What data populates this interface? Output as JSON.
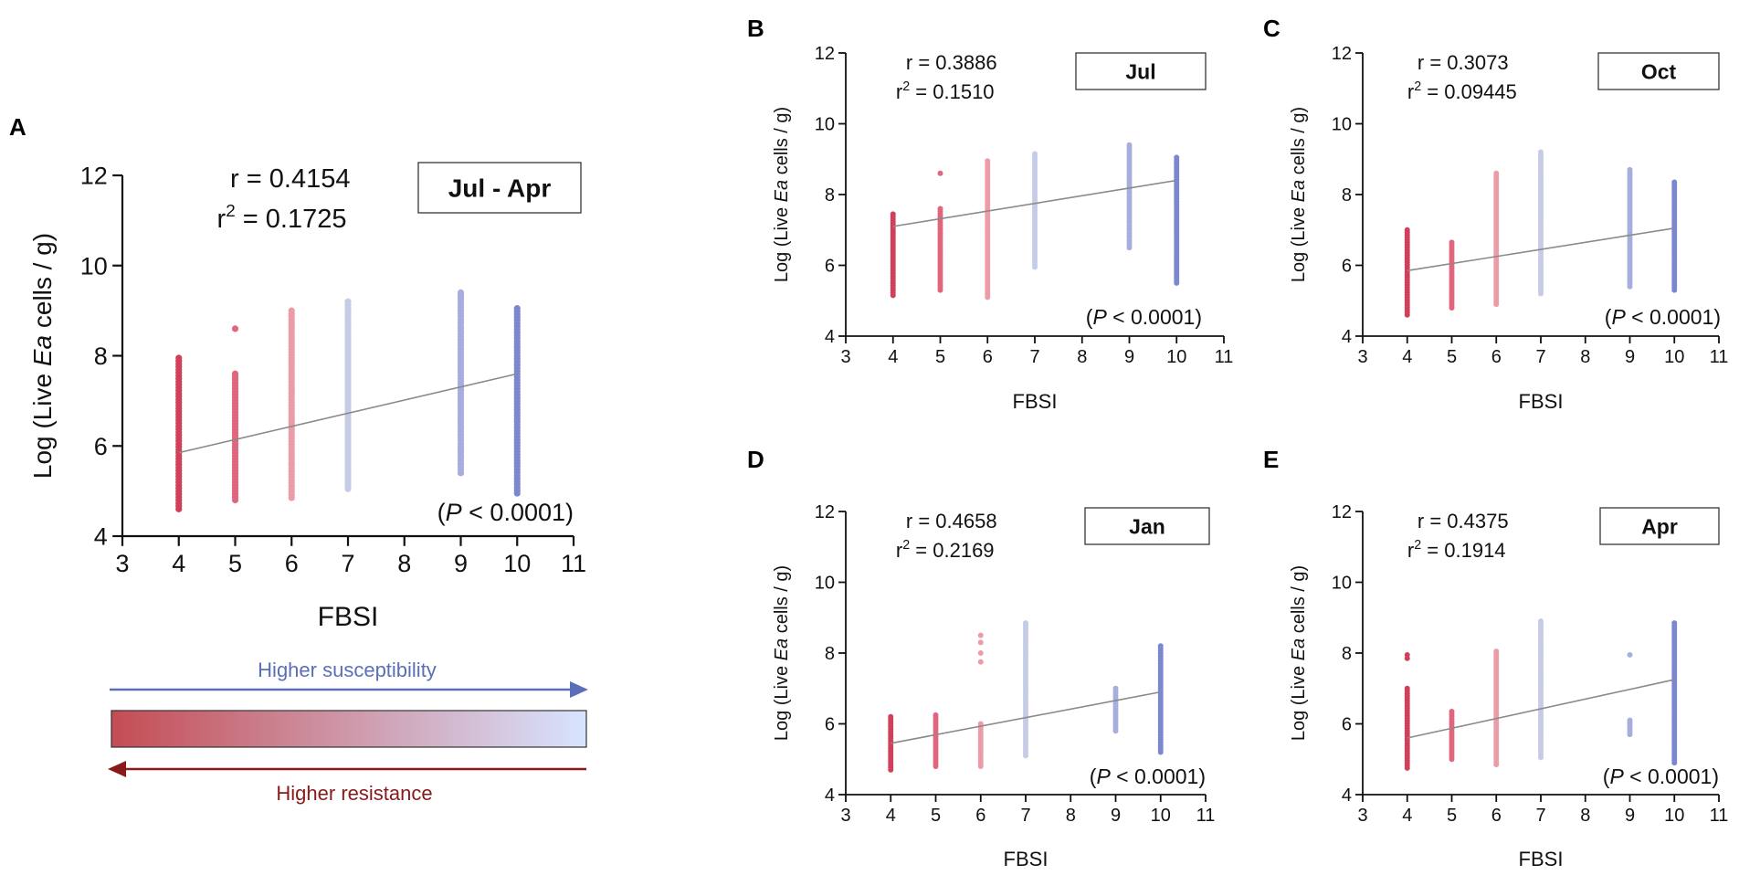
{
  "colors": {
    "fbsi_4": "#d1405a",
    "fbsi_5": "#e0667e",
    "fbsi_6": "#eb9ca7",
    "fbsi_7": "#c6cbe6",
    "fbsi_9": "#a7aede",
    "fbsi_10": "#7b88d0",
    "regression_line": "#8a8a8a",
    "axis": "#111111",
    "susceptibility_arrow": "#5b6fb8",
    "resistance_arrow": "#8a1a1a",
    "gradient_start": "#c44c54",
    "gradient_end": "#d8e4ff"
  },
  "legend_bar": {
    "susceptibility_label": "Higher susceptibility",
    "resistance_label": "Higher resistance"
  },
  "chart_data": [
    {
      "panel": "A",
      "type": "scatter",
      "title": "Jul - Apr",
      "xlabel": "FBSI",
      "ylabel_prefix": "Log (Live ",
      "ylabel_italic": "Ea",
      "ylabel_suffix": " cells / g)",
      "xlim": [
        3,
        11
      ],
      "ylim": [
        4,
        12
      ],
      "xticks": [
        "3",
        "4",
        "5",
        "6",
        "7",
        "8",
        "9",
        "10",
        "11"
      ],
      "yticks": [
        "4",
        "6",
        "8",
        "10",
        "12"
      ],
      "r_label": "r",
      "r_value": "0.4154",
      "r2_label": "r",
      "r2_sup": "2",
      "r2_value": "0.1725",
      "p_prefix": "(",
      "p_italic": "P",
      "p_suffix": " < 0.0001)",
      "regression": {
        "x": [
          4,
          10
        ],
        "y": [
          5.85,
          7.6
        ]
      },
      "groups": [
        {
          "x": 4,
          "ymin": 4.6,
          "ymax": 7.95,
          "outliers": []
        },
        {
          "x": 5,
          "ymin": 4.8,
          "ymax": 7.6,
          "outliers": [
            8.6
          ]
        },
        {
          "x": 6,
          "ymin": 4.85,
          "ymax": 9.0,
          "outliers": []
        },
        {
          "x": 7,
          "ymin": 5.05,
          "ymax": 9.2,
          "outliers": []
        },
        {
          "x": 9,
          "ymin": 5.4,
          "ymax": 9.4,
          "outliers": []
        },
        {
          "x": 10,
          "ymin": 4.95,
          "ymax": 9.05,
          "outliers": []
        }
      ]
    },
    {
      "panel": "B",
      "type": "scatter",
      "title": "Jul",
      "xlabel": "FBSI",
      "ylabel_prefix": "Log (Live ",
      "ylabel_italic": "Ea",
      "ylabel_suffix": " cells / g)",
      "xlim": [
        3,
        11
      ],
      "ylim": [
        4,
        12
      ],
      "xticks": [
        "3",
        "4",
        "5",
        "6",
        "7",
        "8",
        "9",
        "10",
        "11"
      ],
      "yticks": [
        "4",
        "6",
        "8",
        "10",
        "12"
      ],
      "r_label": "r",
      "r_value": "0.3886",
      "r2_label": "r",
      "r2_sup": "2",
      "r2_value": "0.1510",
      "p_prefix": "(",
      "p_italic": "P",
      "p_suffix": " < 0.0001)",
      "regression": {
        "x": [
          4,
          10
        ],
        "y": [
          7.1,
          8.4
        ]
      },
      "groups": [
        {
          "x": 4,
          "ymin": 5.15,
          "ymax": 7.45,
          "outliers": []
        },
        {
          "x": 5,
          "ymin": 5.3,
          "ymax": 7.6,
          "outliers": [
            8.6
          ]
        },
        {
          "x": 6,
          "ymin": 5.1,
          "ymax": 8.95,
          "outliers": []
        },
        {
          "x": 7,
          "ymin": 5.95,
          "ymax": 9.15,
          "outliers": []
        },
        {
          "x": 9,
          "ymin": 6.5,
          "ymax": 9.4,
          "outliers": []
        },
        {
          "x": 10,
          "ymin": 5.5,
          "ymax": 9.05,
          "outliers": []
        }
      ]
    },
    {
      "panel": "C",
      "type": "scatter",
      "title": "Oct",
      "xlabel": "FBSI",
      "ylabel_prefix": "Log (Live ",
      "ylabel_italic": "Ea",
      "ylabel_suffix": " cells / g)",
      "xlim": [
        3,
        11
      ],
      "ylim": [
        4,
        12
      ],
      "xticks": [
        "3",
        "4",
        "5",
        "6",
        "7",
        "8",
        "9",
        "10",
        "11"
      ],
      "yticks": [
        "4",
        "6",
        "8",
        "10",
        "12"
      ],
      "r_label": "r",
      "r_value": "0.3073",
      "r2_label": "r",
      "r2_sup": "2",
      "r2_value": "0.09445",
      "p_prefix": "(",
      "p_italic": "P",
      "p_suffix": " < 0.0001)",
      "regression": {
        "x": [
          4,
          10
        ],
        "y": [
          5.85,
          7.05
        ]
      },
      "groups": [
        {
          "x": 4,
          "ymin": 4.6,
          "ymax": 7.0,
          "outliers": []
        },
        {
          "x": 5,
          "ymin": 4.8,
          "ymax": 6.65,
          "outliers": []
        },
        {
          "x": 6,
          "ymin": 4.9,
          "ymax": 8.6,
          "outliers": []
        },
        {
          "x": 7,
          "ymin": 5.2,
          "ymax": 9.2,
          "outliers": []
        },
        {
          "x": 9,
          "ymin": 5.4,
          "ymax": 8.7,
          "outliers": []
        },
        {
          "x": 10,
          "ymin": 5.3,
          "ymax": 8.35,
          "outliers": []
        }
      ]
    },
    {
      "panel": "D",
      "type": "scatter",
      "title": "Jan",
      "xlabel": "FBSI",
      "ylabel_prefix": "Log (Live ",
      "ylabel_italic": "Ea",
      "ylabel_suffix": " cells / g)",
      "xlim": [
        3,
        11
      ],
      "ylim": [
        4,
        12
      ],
      "xticks": [
        "3",
        "4",
        "5",
        "6",
        "7",
        "8",
        "9",
        "10",
        "11"
      ],
      "yticks": [
        "4",
        "6",
        "8",
        "10",
        "12"
      ],
      "r_label": "r",
      "r_value": "0.4658",
      "r2_label": "r",
      "r2_sup": "2",
      "r2_value": "0.2169",
      "p_prefix": "(",
      "p_italic": "P",
      "p_suffix": " < 0.0001)",
      "regression": {
        "x": [
          4,
          10
        ],
        "y": [
          5.45,
          6.9
        ]
      },
      "groups": [
        {
          "x": 4,
          "ymin": 4.7,
          "ymax": 6.2,
          "outliers": []
        },
        {
          "x": 5,
          "ymin": 4.8,
          "ymax": 6.25,
          "outliers": []
        },
        {
          "x": 6,
          "ymin": 4.8,
          "ymax": 6.0,
          "outliers": [
            7.75,
            8.0,
            8.3,
            8.5
          ]
        },
        {
          "x": 7,
          "ymin": 5.1,
          "ymax": 8.85,
          "outliers": []
        },
        {
          "x": 9,
          "ymin": 5.8,
          "ymax": 7.0,
          "outliers": []
        },
        {
          "x": 10,
          "ymin": 5.2,
          "ymax": 8.2,
          "outliers": []
        }
      ]
    },
    {
      "panel": "E",
      "type": "scatter",
      "title": "Apr",
      "xlabel": "FBSI",
      "ylabel_prefix": "Log (Live ",
      "ylabel_italic": "Ea",
      "ylabel_suffix": " cells / g)",
      "xlim": [
        3,
        11
      ],
      "ylim": [
        4,
        12
      ],
      "xticks": [
        "3",
        "4",
        "5",
        "6",
        "7",
        "8",
        "9",
        "10",
        "11"
      ],
      "yticks": [
        "4",
        "6",
        "8",
        "10",
        "12"
      ],
      "r_label": "r",
      "r_value": "0.4375",
      "r2_label": "r",
      "r2_sup": "2",
      "r2_value": "0.1914",
      "p_prefix": "(",
      "p_italic": "P",
      "p_suffix": " < 0.0001)",
      "regression": {
        "x": [
          4,
          10
        ],
        "y": [
          5.6,
          7.25
        ]
      },
      "groups": [
        {
          "x": 4,
          "ymin": 4.75,
          "ymax": 7.0,
          "outliers": [
            7.85,
            7.95
          ]
        },
        {
          "x": 5,
          "ymin": 5.0,
          "ymax": 6.35,
          "outliers": []
        },
        {
          "x": 6,
          "ymin": 4.85,
          "ymax": 8.05,
          "outliers": []
        },
        {
          "x": 7,
          "ymin": 5.05,
          "ymax": 8.9,
          "outliers": []
        },
        {
          "x": 9,
          "ymin": 5.7,
          "ymax": 6.1,
          "outliers": [
            7.95
          ]
        },
        {
          "x": 10,
          "ymin": 4.9,
          "ymax": 8.85,
          "outliers": []
        }
      ]
    }
  ]
}
